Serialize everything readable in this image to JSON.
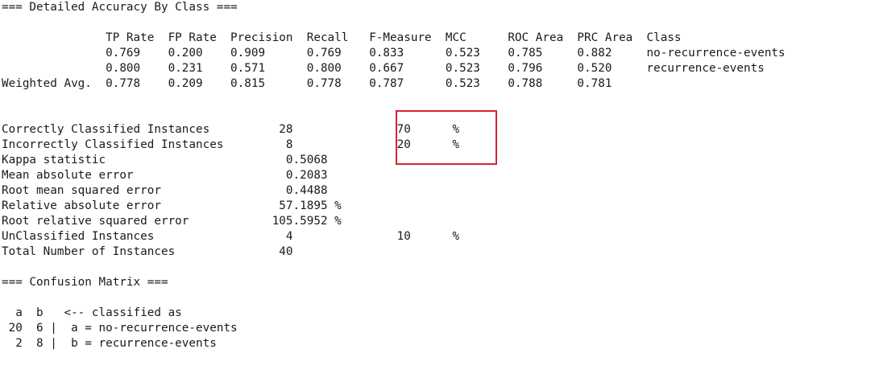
{
  "accuracy_section": {
    "header": "=== Detailed Accuracy By Class ===",
    "column_headers": "               TP Rate  FP Rate  Precision  Recall   F-Measure  MCC      ROC Area  PRC Area  Class",
    "rows": [
      "               0.769    0.200    0.909      0.769    0.833      0.523    0.785     0.882     no-recurrence-events",
      "               0.800    0.231    0.571      0.800    0.667      0.523    0.796     0.520     recurrence-events",
      "Weighted Avg.  0.778    0.209    0.815      0.778    0.787      0.523    0.788     0.781"
    ]
  },
  "summary_section": {
    "rows": [
      "Correctly Classified Instances          28               70      %",
      "Incorrectly Classified Instances         8               20      %",
      "Kappa statistic                          0.5068",
      "Mean absolute error                      0.2083",
      "Root mean squared error                  0.4488",
      "Relative absolute error                 57.1895 %",
      "Root relative squared error            105.5952 %",
      "UnClassified Instances                   4               10      %",
      "Total Number of Instances               40"
    ]
  },
  "confusion_section": {
    "header": "=== Confusion Matrix ===",
    "rows": [
      "  a  b   <-- classified as",
      " 20  6 |  a = no-recurrence-events",
      "  2  8 |  b = recurrence-events"
    ]
  },
  "highlight": {
    "color": "#d9232e"
  }
}
